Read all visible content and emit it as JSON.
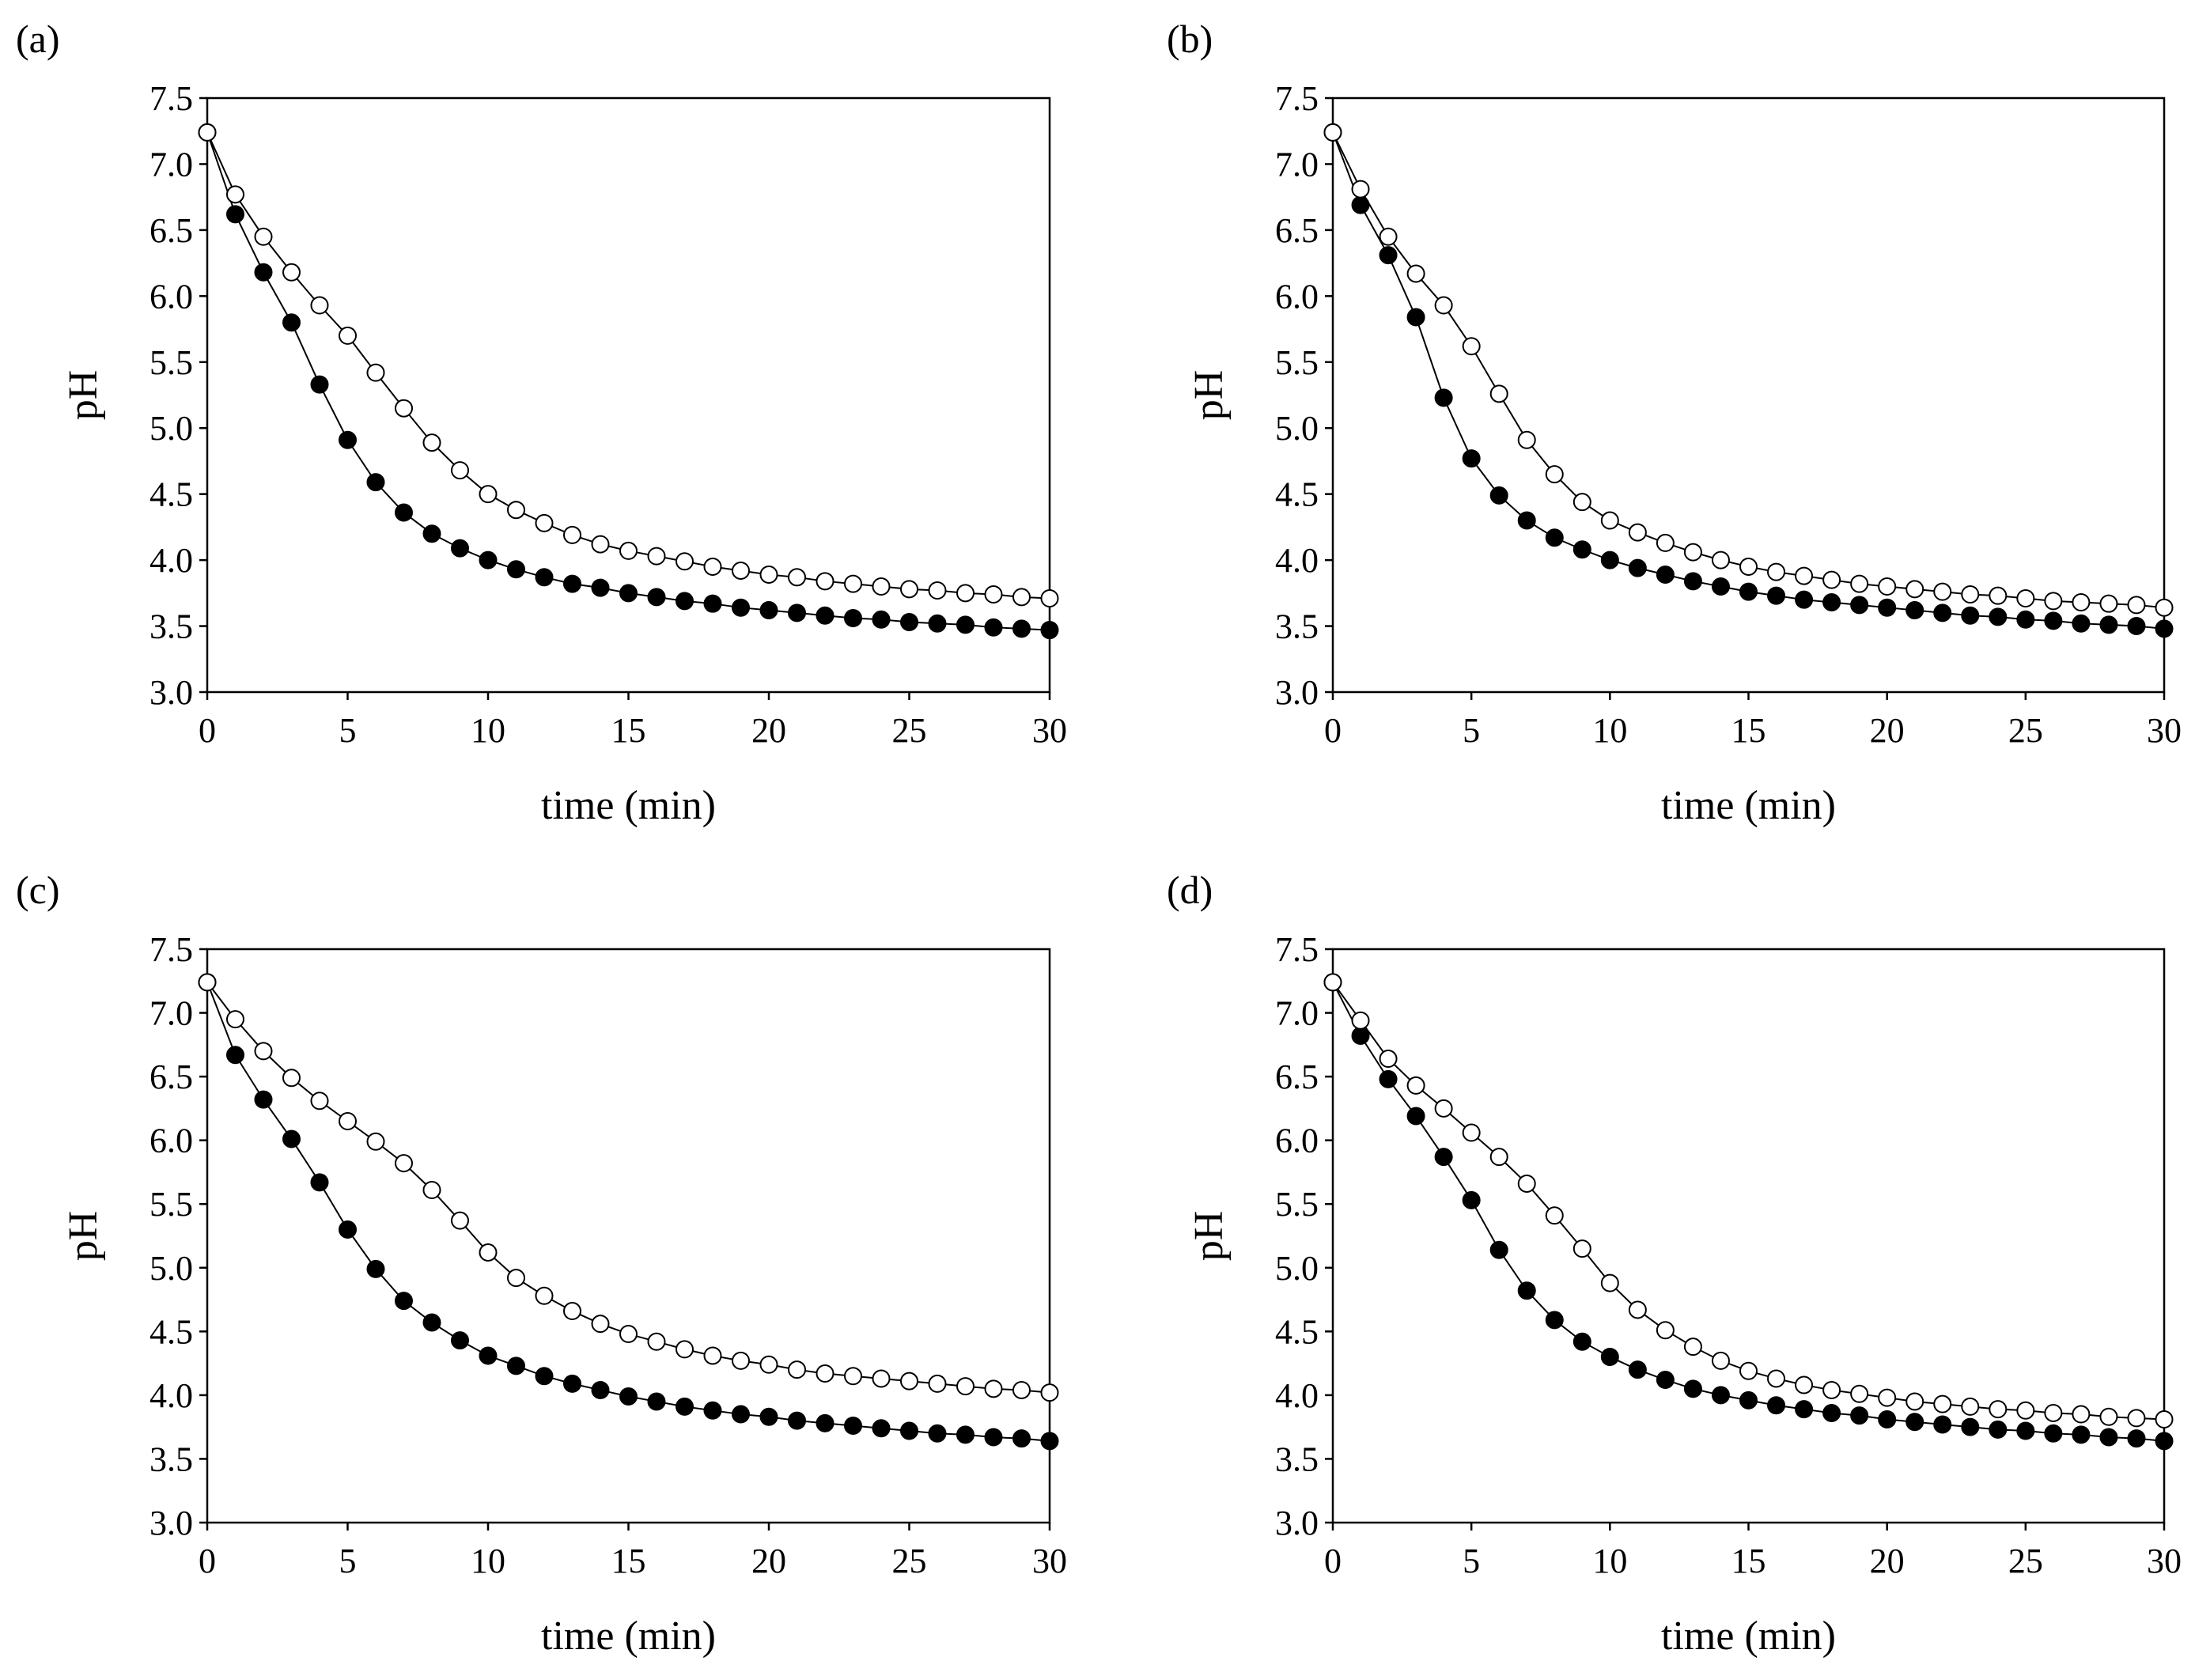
{
  "chart_data": [
    {
      "type": "line",
      "panel_label": "(a)",
      "xlabel": "time (min)",
      "ylabel": "pH",
      "xlim": [
        0,
        30
      ],
      "ylim": [
        3.0,
        7.5
      ],
      "xticks": [
        "0",
        "5",
        "10",
        "15",
        "20",
        "25",
        "30"
      ],
      "yticks": [
        "3.0",
        "3.5",
        "4.0",
        "4.5",
        "5.0",
        "5.5",
        "6.0",
        "6.5",
        "7.0",
        "7.5"
      ],
      "x": [
        0,
        1,
        2,
        3,
        4,
        5,
        6,
        7,
        8,
        9,
        10,
        11,
        12,
        13,
        14,
        15,
        16,
        17,
        18,
        19,
        20,
        21,
        22,
        23,
        24,
        25,
        26,
        27,
        28,
        29,
        30
      ],
      "series": [
        {
          "name": "filled",
          "marker": "filled-circle",
          "values": [
            7.24,
            6.62,
            6.18,
            5.8,
            5.33,
            4.91,
            4.59,
            4.36,
            4.2,
            4.09,
            4.0,
            3.93,
            3.87,
            3.82,
            3.79,
            3.75,
            3.72,
            3.69,
            3.67,
            3.64,
            3.62,
            3.6,
            3.58,
            3.56,
            3.55,
            3.53,
            3.52,
            3.51,
            3.49,
            3.48,
            3.47
          ]
        },
        {
          "name": "open",
          "marker": "open-circle",
          "values": [
            7.24,
            6.77,
            6.45,
            6.18,
            5.93,
            5.7,
            5.42,
            5.15,
            4.89,
            4.68,
            4.5,
            4.38,
            4.28,
            4.19,
            4.12,
            4.07,
            4.03,
            3.99,
            3.95,
            3.92,
            3.89,
            3.87,
            3.84,
            3.82,
            3.8,
            3.78,
            3.77,
            3.75,
            3.74,
            3.72,
            3.71
          ]
        }
      ]
    },
    {
      "type": "line",
      "panel_label": "(b)",
      "xlabel": "time (min)",
      "ylabel": "pH",
      "xlim": [
        0,
        30
      ],
      "ylim": [
        3.0,
        7.5
      ],
      "xticks": [
        "0",
        "5",
        "10",
        "15",
        "20",
        "25",
        "30"
      ],
      "yticks": [
        "3.0",
        "3.5",
        "4.0",
        "4.5",
        "5.0",
        "5.5",
        "6.0",
        "6.5",
        "7.0",
        "7.5"
      ],
      "x": [
        0,
        1,
        2,
        3,
        4,
        5,
        6,
        7,
        8,
        9,
        10,
        11,
        12,
        13,
        14,
        15,
        16,
        17,
        18,
        19,
        20,
        21,
        22,
        23,
        24,
        25,
        26,
        27,
        28,
        29,
        30
      ],
      "series": [
        {
          "name": "filled",
          "marker": "filled-circle",
          "values": [
            7.24,
            6.69,
            6.31,
            5.84,
            5.23,
            4.77,
            4.49,
            4.3,
            4.17,
            4.08,
            4.0,
            3.94,
            3.89,
            3.84,
            3.8,
            3.76,
            3.73,
            3.7,
            3.68,
            3.66,
            3.64,
            3.62,
            3.6,
            3.58,
            3.57,
            3.55,
            3.54,
            3.52,
            3.51,
            3.5,
            3.48
          ]
        },
        {
          "name": "open",
          "marker": "open-circle",
          "values": [
            7.24,
            6.81,
            6.45,
            6.17,
            5.93,
            5.62,
            5.26,
            4.91,
            4.65,
            4.44,
            4.3,
            4.21,
            4.13,
            4.06,
            4.0,
            3.95,
            3.91,
            3.88,
            3.85,
            3.82,
            3.8,
            3.78,
            3.76,
            3.74,
            3.73,
            3.71,
            3.69,
            3.68,
            3.67,
            3.66,
            3.64
          ]
        }
      ]
    },
    {
      "type": "line",
      "panel_label": "(c)",
      "xlabel": "time (min)",
      "ylabel": "pH",
      "xlim": [
        0,
        30
      ],
      "ylim": [
        3.0,
        7.5
      ],
      "xticks": [
        "0",
        "5",
        "10",
        "15",
        "20",
        "25",
        "30"
      ],
      "yticks": [
        "3.0",
        "3.5",
        "4.0",
        "4.5",
        "5.0",
        "5.5",
        "6.0",
        "6.5",
        "7.0",
        "7.5"
      ],
      "x": [
        0,
        1,
        2,
        3,
        4,
        5,
        6,
        7,
        8,
        9,
        10,
        11,
        12,
        13,
        14,
        15,
        16,
        17,
        18,
        19,
        20,
        21,
        22,
        23,
        24,
        25,
        26,
        27,
        28,
        29,
        30
      ],
      "series": [
        {
          "name": "filled",
          "marker": "filled-circle",
          "values": [
            7.24,
            6.67,
            6.32,
            6.01,
            5.67,
            5.3,
            4.99,
            4.74,
            4.57,
            4.43,
            4.31,
            4.23,
            4.15,
            4.09,
            4.04,
            3.99,
            3.95,
            3.91,
            3.88,
            3.85,
            3.83,
            3.8,
            3.78,
            3.76,
            3.74,
            3.72,
            3.7,
            3.69,
            3.67,
            3.66,
            3.64
          ]
        },
        {
          "name": "open",
          "marker": "open-circle",
          "values": [
            7.24,
            6.95,
            6.7,
            6.49,
            6.31,
            6.15,
            5.99,
            5.82,
            5.61,
            5.37,
            5.12,
            4.92,
            4.78,
            4.66,
            4.56,
            4.48,
            4.42,
            4.36,
            4.31,
            4.27,
            4.24,
            4.2,
            4.17,
            4.15,
            4.13,
            4.11,
            4.09,
            4.07,
            4.05,
            4.04,
            4.02
          ]
        }
      ]
    },
    {
      "type": "line",
      "panel_label": "(d)",
      "xlabel": "time (min)",
      "ylabel": "pH",
      "xlim": [
        0,
        30
      ],
      "ylim": [
        3.0,
        7.5
      ],
      "xticks": [
        "0",
        "5",
        "10",
        "15",
        "20",
        "25",
        "30"
      ],
      "yticks": [
        "3.0",
        "3.5",
        "4.0",
        "4.5",
        "5.0",
        "5.5",
        "6.0",
        "6.5",
        "7.0",
        "7.5"
      ],
      "x": [
        0,
        1,
        2,
        3,
        4,
        5,
        6,
        7,
        8,
        9,
        10,
        11,
        12,
        13,
        14,
        15,
        16,
        17,
        18,
        19,
        20,
        21,
        22,
        23,
        24,
        25,
        26,
        27,
        28,
        29,
        30
      ],
      "series": [
        {
          "name": "filled",
          "marker": "filled-circle",
          "values": [
            7.24,
            6.82,
            6.48,
            6.19,
            5.87,
            5.53,
            5.14,
            4.82,
            4.59,
            4.42,
            4.3,
            4.2,
            4.12,
            4.05,
            4.0,
            3.96,
            3.92,
            3.89,
            3.86,
            3.84,
            3.81,
            3.79,
            3.77,
            3.75,
            3.73,
            3.72,
            3.7,
            3.69,
            3.67,
            3.66,
            3.64
          ]
        },
        {
          "name": "open",
          "marker": "open-circle",
          "values": [
            7.24,
            6.94,
            6.64,
            6.43,
            6.25,
            6.06,
            5.87,
            5.66,
            5.41,
            5.15,
            4.88,
            4.67,
            4.51,
            4.38,
            4.27,
            4.19,
            4.13,
            4.08,
            4.04,
            4.01,
            3.98,
            3.95,
            3.93,
            3.91,
            3.89,
            3.88,
            3.86,
            3.85,
            3.83,
            3.82,
            3.81
          ]
        }
      ]
    }
  ]
}
